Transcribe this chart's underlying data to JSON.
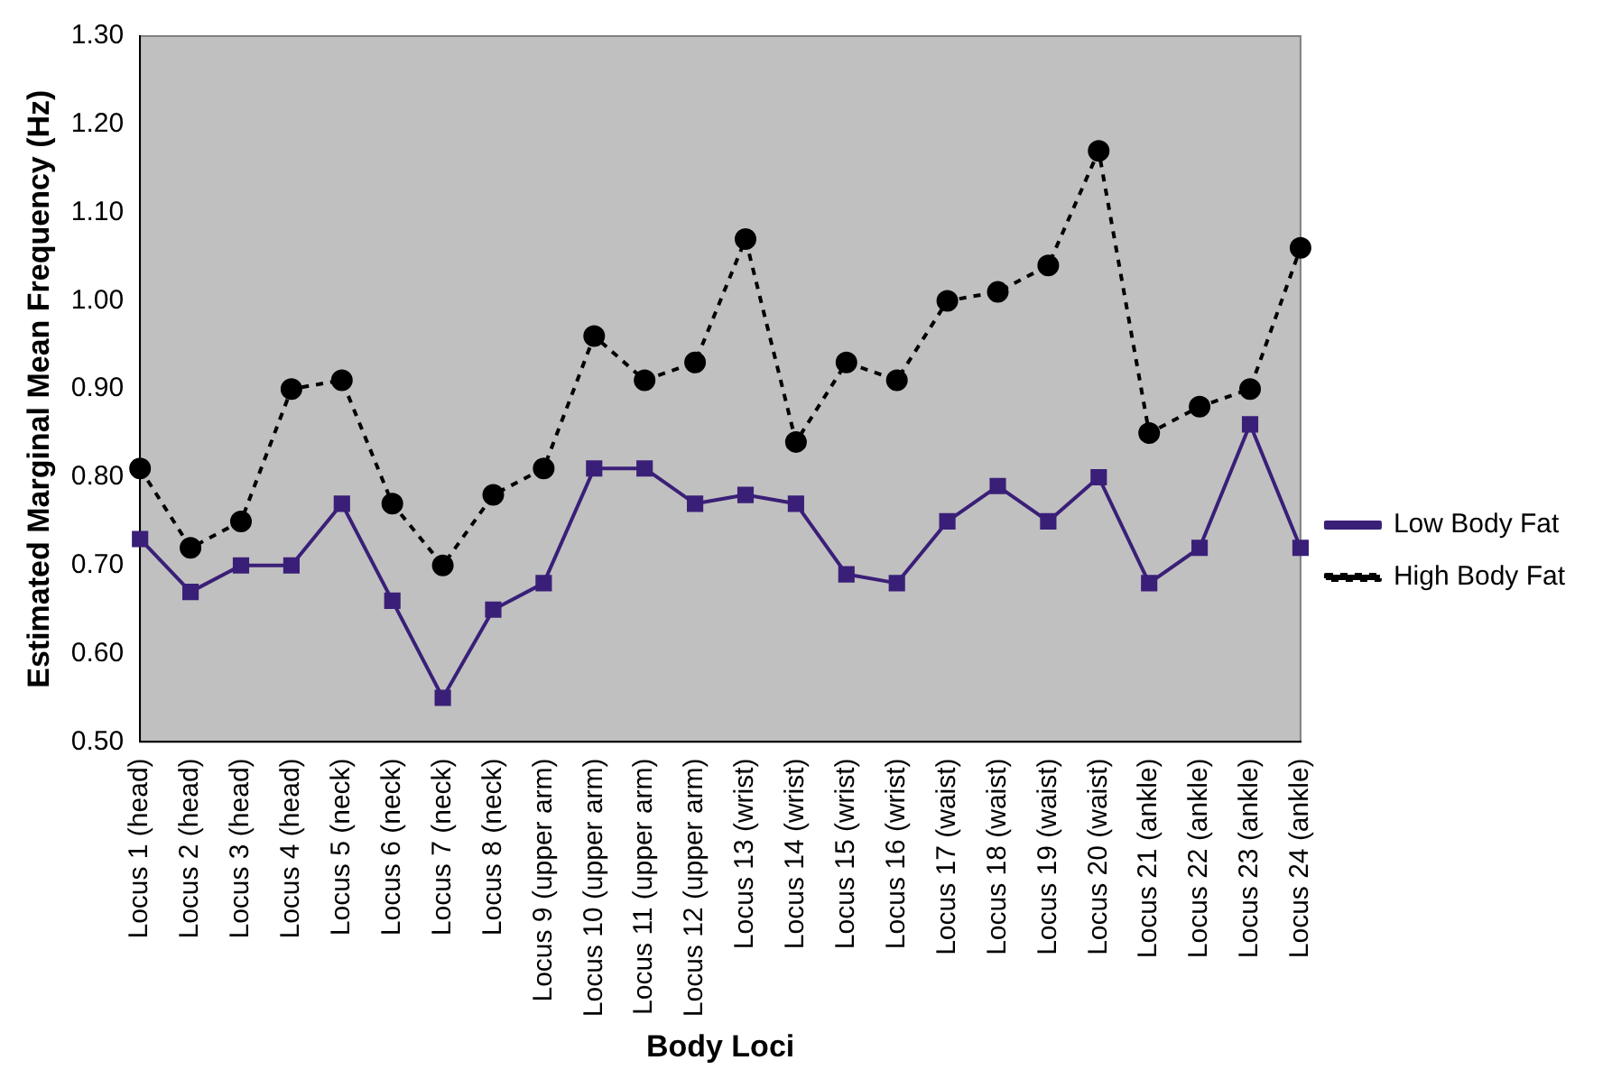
{
  "chart_data": {
    "type": "line",
    "xlabel": "Body Loci",
    "ylabel": "Estimated Marginal Mean Frequency (Hz)",
    "categories": [
      "Locus 1 (head)",
      "Locus 2 (head)",
      "Locus 3 (head)",
      "Locus 4 (head)",
      "Locus 5 (neck)",
      "Locus 6 (neck)",
      "Locus 7 (neck)",
      "Locus 8 (neck)",
      "Locus 9 (upper arm)",
      "Locus 10 (upper arm)",
      "Locus 11 (upper arm)",
      "Locus 12 (upper arm)",
      "Locus 13 (wrist)",
      "Locus 14 (wrist)",
      "Locus 15 (wrist)",
      "Locus 16 (wrist)",
      "Locus 17 (waist)",
      "Locus 18 (waist)",
      "Locus 19 (waist)",
      "Locus 20 (waist)",
      "Locus 21 (ankle)",
      "Locus 22 (ankle)",
      "Locus 23 (ankle)",
      "Locus 24 (ankle)"
    ],
    "series": [
      {
        "name": "Low Body Fat",
        "color": "#3a1f78",
        "marker": "square",
        "line_style": "solid",
        "values": [
          0.73,
          0.67,
          0.7,
          0.7,
          0.77,
          0.66,
          0.55,
          0.65,
          0.68,
          0.81,
          0.81,
          0.77,
          0.78,
          0.77,
          0.69,
          0.68,
          0.75,
          0.79,
          0.75,
          0.8,
          0.68,
          0.72,
          0.86,
          0.72
        ]
      },
      {
        "name": "High Body Fat",
        "color": "#000000",
        "marker": "circle",
        "line_style": "dashed",
        "values": [
          0.81,
          0.72,
          0.75,
          0.9,
          0.91,
          0.77,
          0.7,
          0.78,
          0.81,
          0.96,
          0.91,
          0.93,
          1.07,
          0.84,
          0.93,
          0.91,
          1.0,
          1.01,
          1.04,
          1.17,
          0.85,
          0.88,
          0.9,
          1.06
        ]
      }
    ],
    "ylim": [
      0.5,
      1.3
    ],
    "yticks": [
      {
        "value": 0.5,
        "label": "0.50"
      },
      {
        "value": 0.6,
        "label": "0.60"
      },
      {
        "value": 0.7,
        "label": "0.70"
      },
      {
        "value": 0.8,
        "label": "0.80"
      },
      {
        "value": 0.9,
        "label": "0.90"
      },
      {
        "value": 1.0,
        "label": "1.00"
      },
      {
        "value": 1.1,
        "label": "1.10"
      },
      {
        "value": 1.2,
        "label": "1.20"
      },
      {
        "value": 1.3,
        "label": "1.30"
      }
    ],
    "grid": false,
    "legend": "right"
  }
}
